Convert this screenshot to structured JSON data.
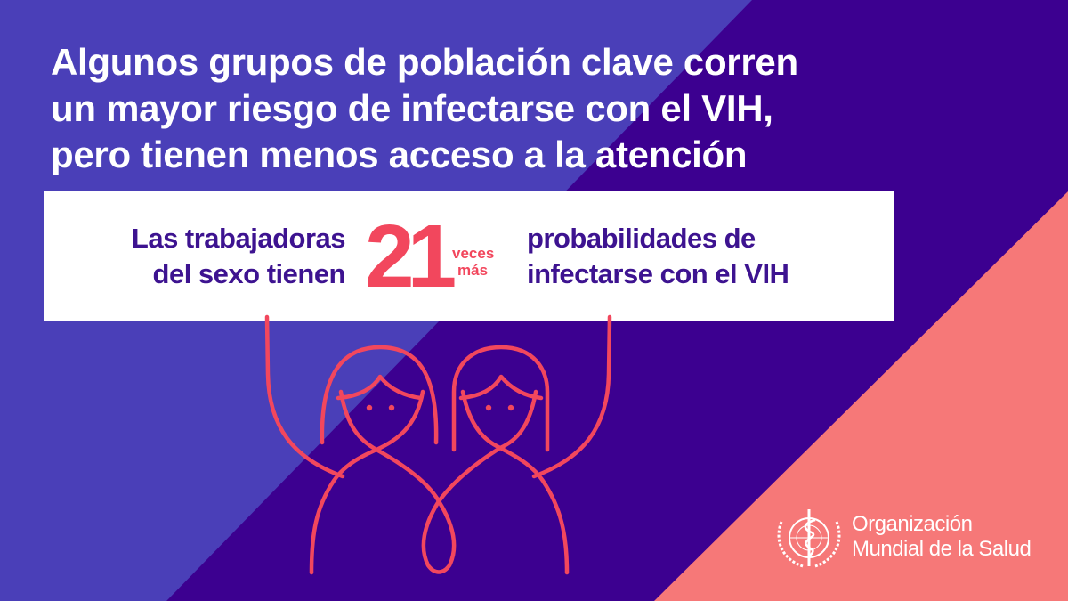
{
  "colors": {
    "background_light": "#4a3fb8",
    "background_dark": "#3c0090",
    "background_coral": "#f67878",
    "accent_red": "#f2475d",
    "text_purple": "#3d1390"
  },
  "title": {
    "lines": [
      "Algunos grupos de población clave corren",
      "un mayor riesgo de infectarse con el VIH,",
      "pero tienen menos acceso a la atención"
    ]
  },
  "stat": {
    "left_lines": [
      "Las trabajadoras",
      "del sexo tienen"
    ],
    "number": "21",
    "unit_lines": [
      "veces",
      "más"
    ],
    "right_lines": [
      "probabilidades de",
      "infectarse con el VIH"
    ]
  },
  "illustration": {
    "icon": "two-women-holding-sign-icon"
  },
  "logo": {
    "icon": "who-emblem-icon",
    "lines": [
      "Organización",
      "Mundial de la Salud"
    ]
  }
}
